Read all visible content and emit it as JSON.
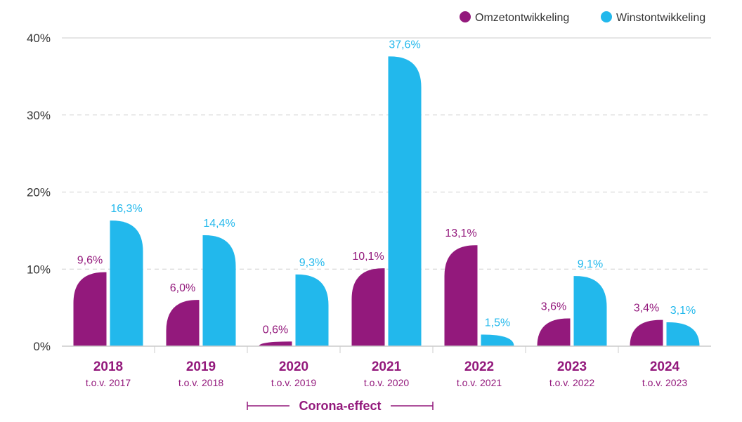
{
  "chart_data": {
    "type": "bar",
    "categories": [
      "2018",
      "2019",
      "2020",
      "2021",
      "2022",
      "2023",
      "2024"
    ],
    "category_sublabels": [
      "t.o.v. 2017",
      "t.o.v. 2018",
      "t.o.v. 2019",
      "t.o.v. 2020",
      "t.o.v. 2021",
      "t.o.v. 2022",
      "t.o.v. 2023"
    ],
    "series": [
      {
        "name": "Omzetontwikkeling",
        "color": "#93197c",
        "values": [
          9.6,
          6.0,
          0.6,
          10.1,
          13.1,
          3.6,
          3.4
        ],
        "labels": [
          "9,6%",
          "6,0%",
          "0,6%",
          "10,1%",
          "13,1%",
          "3,6%",
          "3,4%"
        ]
      },
      {
        "name": "Winstontwikkeling",
        "color": "#22b8ec",
        "values": [
          16.3,
          14.4,
          9.3,
          37.6,
          1.5,
          9.1,
          3.1
        ],
        "labels": [
          "16,3%",
          "14,4%",
          "9,3%",
          "37,6%",
          "1,5%",
          "9,1%",
          "3,1%"
        ]
      }
    ],
    "ylim": [
      0,
      40
    ],
    "yticks": [
      0,
      10,
      20,
      30,
      40
    ],
    "ytick_labels": [
      "0%",
      "10%",
      "20%",
      "30%",
      "40%"
    ],
    "grid": "horizontal-dashed",
    "legend_position": "top-right",
    "annotation": {
      "text": "Corona-effect",
      "span": [
        "2020",
        "2021"
      ]
    },
    "axis_color": "#cccccc",
    "year_label_color": "#93197c"
  }
}
